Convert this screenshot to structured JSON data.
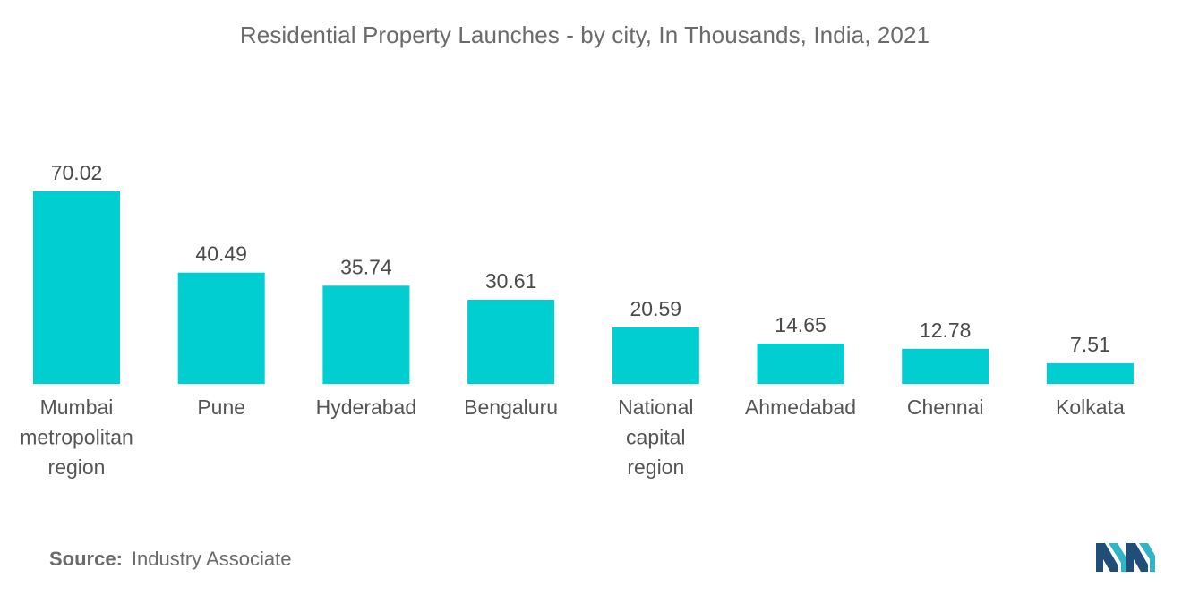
{
  "chart_data": {
    "type": "bar",
    "title": "Residential Property Launches - by city, In Thousands, India, 2021",
    "categories": [
      [
        "Mumbai",
        "metropolitan",
        "region"
      ],
      [
        "Pune"
      ],
      [
        "Hyderabad"
      ],
      [
        "Bengaluru"
      ],
      [
        "National",
        "capital",
        "region"
      ],
      [
        "Ahmedabad"
      ],
      [
        "Chennai"
      ],
      [
        "Kolkata"
      ]
    ],
    "values": [
      70.02,
      40.49,
      35.74,
      30.61,
      20.59,
      14.65,
      12.78,
      7.51
    ],
    "value_labels": [
      "70.02",
      "40.49",
      "35.74",
      "30.61",
      "20.59",
      "14.65",
      "12.78",
      "7.51"
    ],
    "ylim": [
      0,
      70.02
    ],
    "grid": false,
    "bar_color": "#00ced1"
  },
  "source": {
    "label": "Source:",
    "text": "Industry Associate"
  },
  "logo": {
    "icon": "company-logo-icon",
    "colors": [
      "#1f4e79",
      "#2fb5c5"
    ]
  }
}
